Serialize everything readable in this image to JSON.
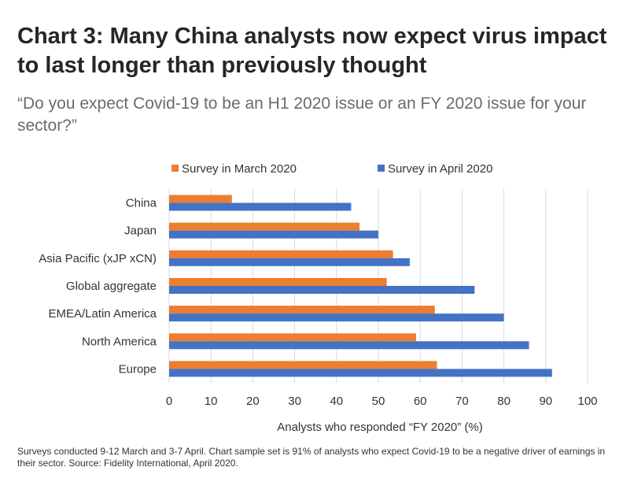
{
  "title": "Chart 3: Many China analysts now expect virus impact to last longer than previously thought",
  "subtitle": "“Do you expect Covid-19 to be an H1 2020 issue or an FY 2020 issue for your sector?”",
  "footnote": "Surveys conducted 9-12 March and 3-7 April. Chart sample set is 91% of analysts who expect Covid-19 to be a negative driver of earnings in their sector. Source: Fidelity International, April 2020.",
  "colors": {
    "march": "#ED7D31",
    "april": "#4472C4"
  },
  "chart_data": {
    "type": "bar",
    "orientation": "horizontal",
    "categories": [
      "China",
      "Japan",
      "Asia Pacific (xJP xCN)",
      "Global aggregate",
      "EMEA/Latin America",
      "North America",
      "Europe"
    ],
    "series": [
      {
        "name": "Survey in March 2020",
        "values": [
          15,
          45.5,
          53.5,
          52,
          63.5,
          59,
          64
        ]
      },
      {
        "name": "Survey in April 2020",
        "values": [
          43.5,
          50,
          57.5,
          73,
          80,
          86,
          91.5
        ]
      }
    ],
    "xlabel": "Analysts who responded “FY 2020” (%)",
    "ylabel": "",
    "xlim": [
      0,
      100
    ],
    "xticks": [
      0,
      10,
      20,
      30,
      40,
      50,
      60,
      70,
      80,
      90,
      100
    ],
    "grid": true,
    "legend_position": "top"
  }
}
